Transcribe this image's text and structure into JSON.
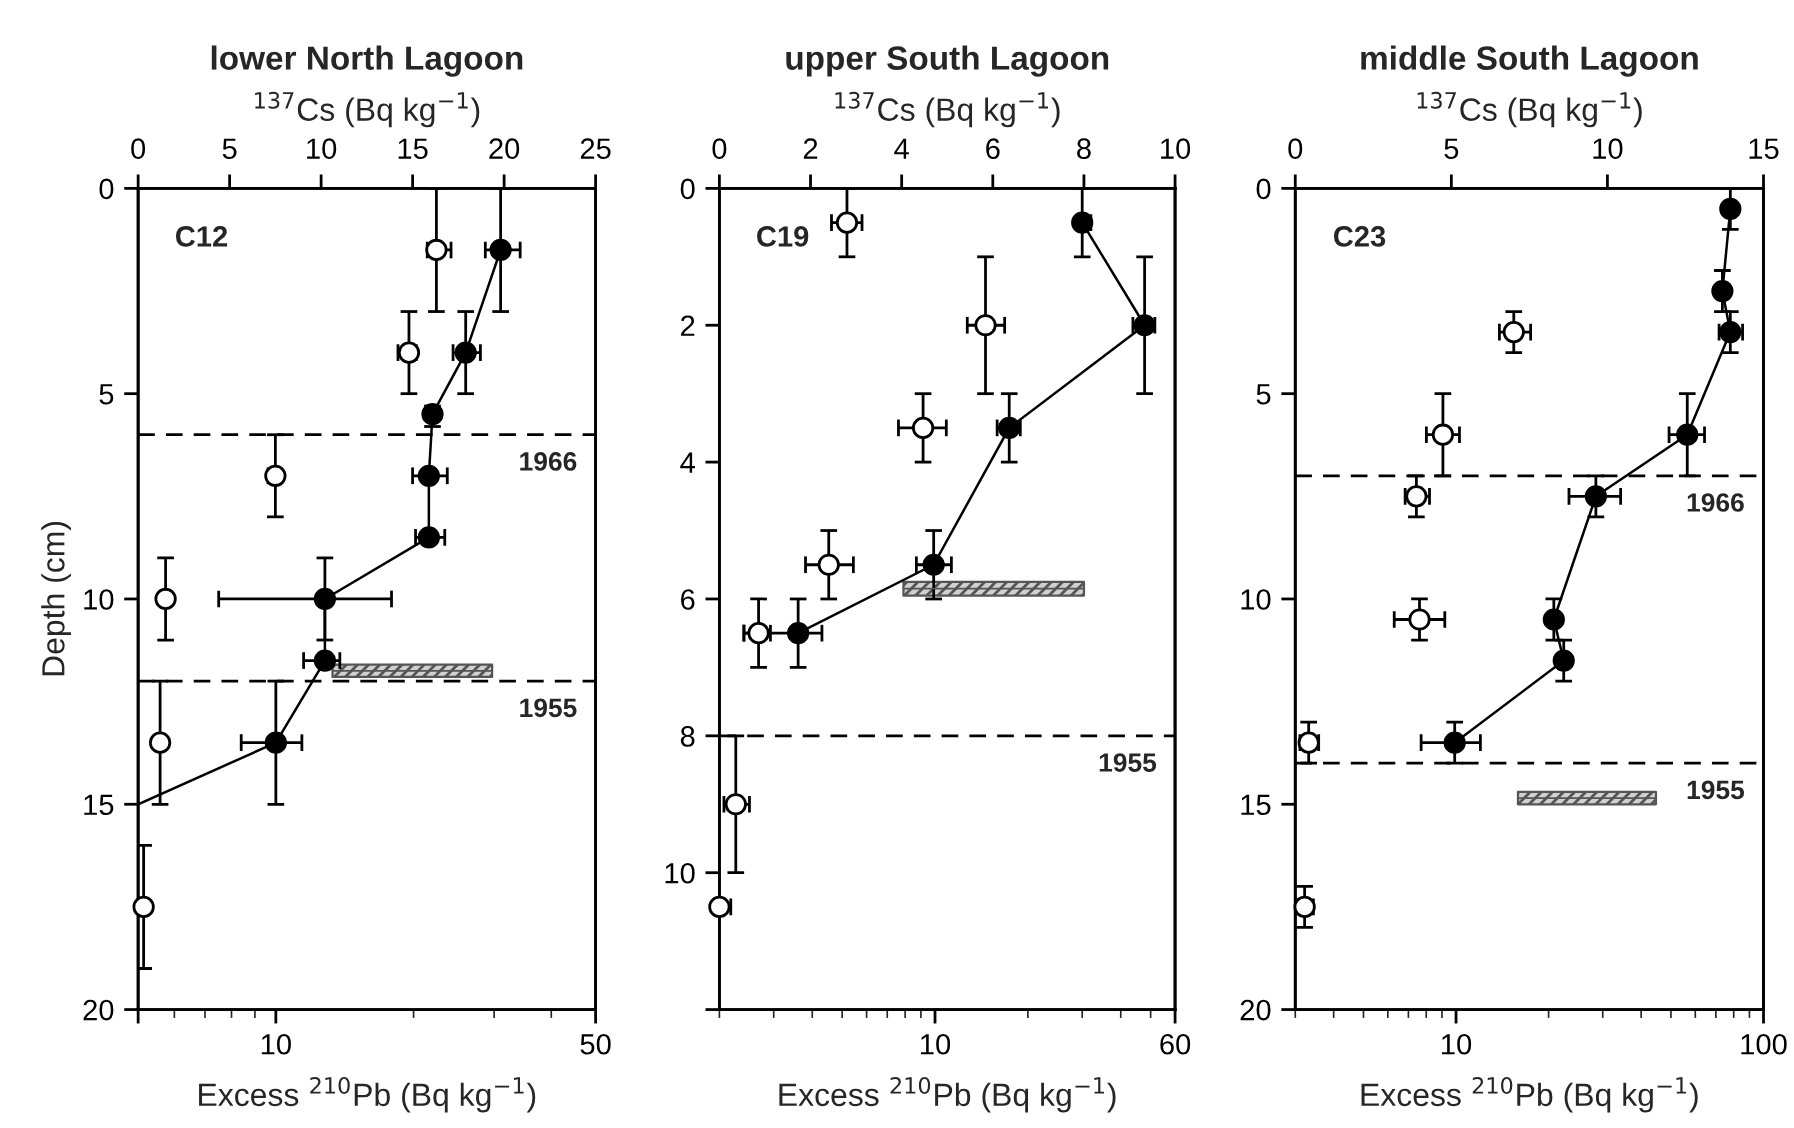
{
  "chart_data": [
    {
      "type": "line",
      "title": "lower North Lagoon",
      "xlabel": "Excess $^{210}$Pb (Bq kg$^{−1}$)",
      "x2label": "$^{137}$Cs (Bq kg$^{−1}$)",
      "ylabel": "Depth (cm)",
      "log": "x",
      "xlim": [
        5,
        50
      ],
      "xticks": [
        {
          "value": 5,
          "label": null
        },
        10,
        50
      ],
      "x2lim": [
        0,
        25
      ],
      "x2ticks": [
        0,
        5,
        10,
        15,
        20,
        25
      ],
      "ylim": [
        20,
        0
      ],
      "yticks": [
        0,
        5,
        10,
        15,
        20
      ],
      "annotations": [
        "C12",
        "1966",
        "1955"
      ],
      "ref_lines": [
        {
          "axis": "y",
          "value": 6,
          "line_style": "dashed"
        },
        {
          "axis": "y",
          "value": 12,
          "line_style": "dashed"
        }
      ],
      "series": [
        {
          "color": "#000000",
          "marker": "circle",
          "x": [
            31,
            26,
            22,
            21.6,
            21.6,
            12.8,
            12.8,
            10
          ],
          "values": [
            1.5,
            4,
            5.5,
            7,
            8.5,
            10,
            11.5,
            13.5
          ],
          "xerrors": [
            [
              28.7,
              34.2
            ],
            [
              24.4,
              28
            ],
            [
              21.4,
              22.7
            ],
            [
              19.9,
              23.7
            ],
            [
              20.2,
              23.4
            ],
            [
              7.5,
              17.9
            ],
            [
              11.5,
              13.8
            ],
            [
              8.4,
              11.4
            ]
          ],
          "errors": [
            [
              0,
              3
            ],
            [
              3,
              5
            ],
            [
              5.3,
              5.8
            ],
            null,
            null,
            [
              9,
              11
            ],
            null,
            [
              12,
              15
            ]
          ]
        },
        {
          "color": "#000000",
          "marker": "none",
          "x": [
            10,
            5
          ],
          "values": [
            13.5,
            15
          ]
        },
        {
          "type": "scatter",
          "axis": "x2",
          "color": "#ffffff",
          "marker": "circle",
          "x": [
            16.3,
            14.8,
            7.5,
            1.5,
            1.2,
            0.3
          ],
          "values": [
            1.5,
            4,
            7,
            10,
            13.5,
            17.5
          ],
          "xerrors": [
            [
              15.8,
              17.1
            ],
            [
              14.2,
              15.2
            ],
            [
              7.1,
              7.8
            ],
            [
              1.2,
              1.8
            ],
            null,
            [
              0.1,
              0.5
            ]
          ],
          "errors": [
            [
              0,
              3
            ],
            [
              3,
              5
            ],
            [
              6,
              8
            ],
            [
              9,
              11
            ],
            [
              12,
              15
            ],
            [
              16,
              19
            ]
          ]
        },
        {
          "color": "#555555",
          "marker": "none",
          "x": [
            13.3,
            29.7
          ],
          "values": [
            11.75,
            11.75
          ],
          "lower": [
            11.6,
            11.6
          ],
          "upper": [
            11.9,
            11.9
          ]
        }
      ]
    },
    {
      "type": "line",
      "title": "upper South Lagoon",
      "xlabel": "Excess $^{210}$Pb (Bq kg$^{−1}$)",
      "x2label": "$^{137}$Cs (Bq kg$^{−1}$)",
      "log": "x",
      "xlim": [
        2,
        60
      ],
      "xticks": [
        10,
        60
      ],
      "x2lim": [
        0,
        10
      ],
      "x2ticks": [
        0,
        2,
        4,
        6,
        8,
        10
      ],
      "ylim": [
        12,
        0
      ],
      "yticks": [
        0,
        2,
        4,
        6,
        8,
        10,
        {
          "value": 12,
          "label": null
        }
      ],
      "annotations": [
        "C19",
        "1955"
      ],
      "ref_lines": [
        {
          "axis": "y",
          "value": 8,
          "line_style": "dashed"
        }
      ],
      "series": [
        {
          "color": "#000000",
          "marker": "circle",
          "x": [
            30,
            47.8,
            17.4,
            9.9,
            3.6
          ],
          "values": [
            0.5,
            2,
            3.5,
            5.5,
            6.5
          ],
          "xerrors": [
            [
              28.7,
              32
            ],
            [
              43.8,
              51.6
            ],
            [
              15.9,
              18.9
            ],
            [
              8.7,
              11.3
            ],
            [
              2.4,
              4.3
            ]
          ],
          "errors": [
            [
              0,
              1
            ],
            [
              1,
              3
            ],
            [
              3,
              4
            ],
            [
              5,
              6
            ],
            [
              6,
              7
            ]
          ]
        },
        {
          "type": "scatter",
          "axis": "x2",
          "color": "#ffffff",
          "marker": "circle",
          "x": [
            2.8,
            5.84,
            4.47,
            2.4,
            0.86,
            0.36,
            0
          ],
          "values": [
            0.5,
            2,
            3.5,
            5.5,
            6.5,
            9,
            10.5
          ],
          "xerrors": [
            [
              2.46,
              3.13
            ],
            [
              5.44,
              6.26
            ],
            [
              3.93,
              4.98
            ],
            [
              1.89,
              2.94
            ],
            [
              0.54,
              1.12
            ],
            [
              0.1,
              0.66
            ],
            [
              0,
              0.25
            ]
          ],
          "errors": [
            [
              0,
              1
            ],
            [
              1,
              3
            ],
            [
              3,
              4
            ],
            [
              5,
              6
            ],
            [
              6,
              7
            ],
            [
              8,
              10
            ],
            null
          ]
        },
        {
          "color": "#555555",
          "marker": "none",
          "x": [
            7.9,
            30.4
          ],
          "values": [
            5.85,
            5.85
          ],
          "lower": [
            5.75,
            5.75
          ],
          "upper": [
            5.95,
            5.95
          ]
        }
      ]
    },
    {
      "type": "line",
      "title": "middle South Lagoon",
      "xlabel": "Excess $^{210}$Pb (Bq kg$^{−1}$)",
      "x2label": "$^{137}$Cs (Bq kg$^{−1}$)",
      "log": "x",
      "xlim": [
        3,
        100
      ],
      "xticks": [
        10,
        100
      ],
      "x2lim": [
        0,
        15
      ],
      "x2ticks": [
        0,
        5,
        10,
        15
      ],
      "ylim": [
        20,
        0
      ],
      "yticks": [
        0,
        5,
        10,
        15,
        20
      ],
      "annotations": [
        "C23",
        "1966",
        "1955"
      ],
      "ref_lines": [
        {
          "axis": "y",
          "value": 7,
          "line_style": "dashed"
        },
        {
          "axis": "y",
          "value": 14,
          "line_style": "dashed"
        }
      ],
      "series": [
        {
          "color": "#000000",
          "marker": "circle",
          "x": [
            78,
            73.5,
            78,
            56.5,
            28.5,
            20.8,
            22.4,
            9.9
          ],
          "values": [
            0.5,
            2.5,
            3.5,
            6,
            7.5,
            10.5,
            11.5,
            13.5
          ],
          "xerrors": [
            null,
            null,
            [
              71.7,
              85.5
            ],
            [
              49.3,
              64.3
            ],
            [
              23.3,
              34.3
            ],
            null,
            null,
            [
              7.7,
              12
            ]
          ],
          "errors": [
            [
              0,
              1
            ],
            [
              2,
              3
            ],
            [
              3,
              4
            ],
            [
              5,
              7
            ],
            [
              7,
              8
            ],
            [
              10,
              11
            ],
            [
              11,
              12
            ],
            [
              13,
              14
            ]
          ]
        },
        {
          "type": "scatter",
          "axis": "x2",
          "color": "#ffffff",
          "marker": "circle",
          "x": [
            7,
            4.73,
            3.88,
            3.98,
            0.43,
            0.3
          ],
          "values": [
            3.5,
            6,
            7.5,
            10.5,
            13.5,
            17.5
          ],
          "xerrors": [
            [
              6.54,
              7.54
            ],
            [
              4.2,
              5.26
            ],
            [
              3.52,
              4.3
            ],
            [
              3.17,
              4.79
            ],
            [
              0.15,
              0.75
            ],
            [
              0.09,
              0.58
            ]
          ],
          "errors": [
            [
              3,
              4
            ],
            [
              5,
              7
            ],
            [
              7,
              8
            ],
            [
              10,
              11
            ],
            [
              13,
              14
            ],
            [
              17,
              18
            ]
          ]
        },
        {
          "color": "#555555",
          "marker": "none",
          "x": [
            15.9,
            44.7
          ],
          "values": [
            14.85,
            14.85
          ],
          "lower": [
            14.7,
            14.7
          ],
          "upper": [
            15.0,
            15.0
          ]
        }
      ]
    }
  ]
}
